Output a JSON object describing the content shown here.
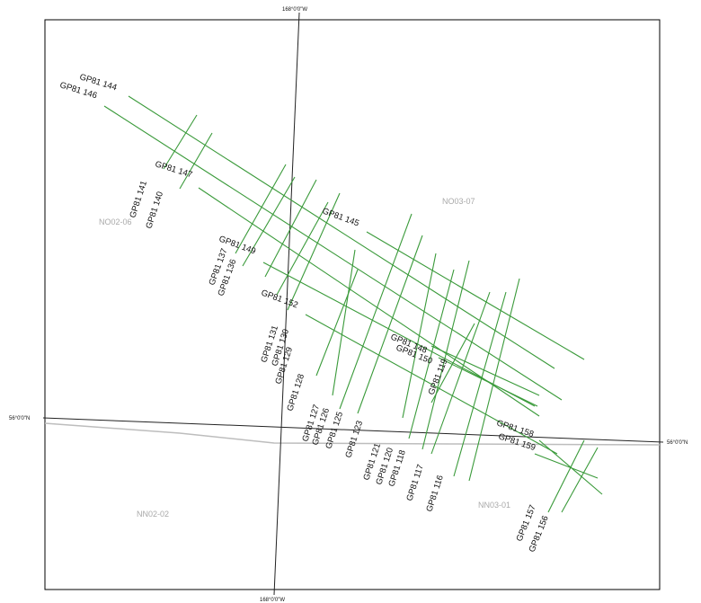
{
  "graticule": {
    "meridian_top_label": "168°0'0\"W",
    "meridian_bottom_label": "168°0'0\"W",
    "parallel_left_label": "56°0'0\"N",
    "parallel_right_label": "56°0'0\"N"
  },
  "blocks": [
    "NO02-06",
    "NO03-07",
    "NN02-02",
    "NN03-01"
  ],
  "line_color": "#3a9a3a",
  "tracklines": [
    {
      "name": "GP81 144"
    },
    {
      "name": "GP81 146"
    },
    {
      "name": "GP81 147"
    },
    {
      "name": "GP81 141"
    },
    {
      "name": "GP81 140"
    },
    {
      "name": "GP81 145"
    },
    {
      "name": "GP81 137"
    },
    {
      "name": "GP81 136"
    },
    {
      "name": "GP81 149"
    },
    {
      "name": "GP81 152"
    },
    {
      "name": "GP81 131"
    },
    {
      "name": "GP81 130"
    },
    {
      "name": "GP81 129"
    },
    {
      "name": "GP81 128"
    },
    {
      "name": "GP81 148"
    },
    {
      "name": "GP81 150"
    },
    {
      "name": "GP81 119"
    },
    {
      "name": "GP81 127"
    },
    {
      "name": "GP81 126"
    },
    {
      "name": "GP81 125"
    },
    {
      "name": "GP81 123"
    },
    {
      "name": "GP81 121"
    },
    {
      "name": "GP81 120"
    },
    {
      "name": "GP81 118"
    },
    {
      "name": "GP81 117"
    },
    {
      "name": "GP81 116"
    },
    {
      "name": "GP81 158"
    },
    {
      "name": "GP81 159"
    },
    {
      "name": "GP81 157"
    },
    {
      "name": "GP81 156"
    }
  ]
}
